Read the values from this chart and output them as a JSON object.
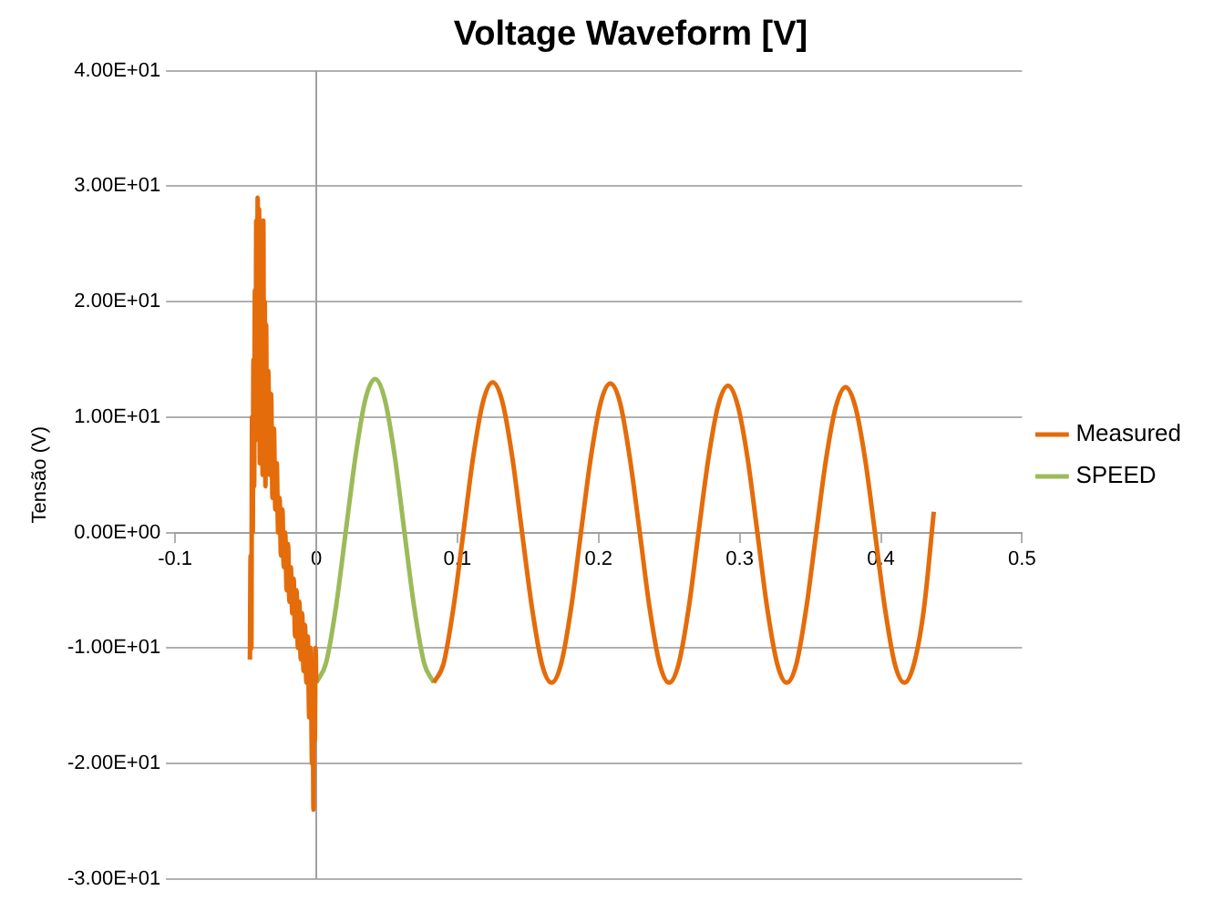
{
  "chart_data": {
    "type": "line",
    "title": "Voltage Waveform [V]",
    "ylabel": "Tensão (V)",
    "legend": "right",
    "grid": "y",
    "marker": "none",
    "line_style": "solid",
    "xlim": [
      -0.1,
      0.5
    ],
    "xticks": [
      -0.1,
      0,
      0.1,
      0.2,
      0.3,
      0.4,
      0.5
    ],
    "ylim": [
      -30,
      40
    ],
    "yticks": [
      {
        "value": -30,
        "label": "-3.00E+01"
      },
      {
        "value": -20,
        "label": "-2.00E+01"
      },
      {
        "value": -10,
        "label": "-1.00E+01"
      },
      {
        "value": 0,
        "label": "0.00E+00"
      },
      {
        "value": 10,
        "label": "1.00E+01"
      },
      {
        "value": 20,
        "label": "2.00E+01"
      },
      {
        "value": 30,
        "label": "3.00E+01"
      },
      {
        "value": 40,
        "label": "4.00E+01"
      }
    ],
    "series": [
      {
        "name": "Measured",
        "color": "#e46c0a",
        "x": [
          -0.047,
          -0.0465,
          -0.046,
          -0.0455,
          -0.045,
          -0.0445,
          -0.044,
          -0.0435,
          -0.043,
          -0.0425,
          -0.042,
          -0.0415,
          -0.041,
          -0.0405,
          -0.04,
          -0.0395,
          -0.039,
          -0.0385,
          -0.038,
          -0.0375,
          -0.037,
          -0.0365,
          -0.036,
          -0.0355,
          -0.035,
          -0.034,
          -0.033,
          -0.032,
          -0.031,
          -0.03,
          -0.029,
          -0.028,
          -0.027,
          -0.026,
          -0.025,
          -0.024,
          -0.023,
          -0.022,
          -0.021,
          -0.02,
          -0.019,
          -0.018,
          -0.017,
          -0.016,
          -0.015,
          -0.014,
          -0.013,
          -0.012,
          -0.011,
          -0.01,
          -0.009,
          -0.008,
          -0.007,
          -0.006,
          -0.005,
          -0.004,
          -0.003,
          -0.0025,
          -0.002,
          -0.0015,
          -0.001,
          -0.0005,
          0,
          0.04,
          0.0833,
          0.0903,
          0.0972,
          0.1042,
          0.1111,
          0.1181,
          0.125,
          0.1319,
          0.1389,
          0.1458,
          0.1528,
          0.1597,
          0.1667,
          0.1736,
          0.1806,
          0.1875,
          0.1944,
          0.2014,
          0.2083,
          0.2153,
          0.2222,
          0.2292,
          0.2361,
          0.2431,
          0.25,
          0.2569,
          0.2639,
          0.2708,
          0.2778,
          0.2847,
          0.2917,
          0.2986,
          0.3056,
          0.3125,
          0.3194,
          0.3264,
          0.3333,
          0.3403,
          0.3472,
          0.3542,
          0.3611,
          0.3681,
          0.375,
          0.3819,
          0.3889,
          0.3958,
          0.4028,
          0.4097,
          0.4167,
          0.4236,
          0.4306,
          0.4375
        ],
        "values": [
          -11,
          -2,
          -10,
          10,
          0,
          15,
          4,
          21,
          8,
          27,
          10,
          29,
          12,
          28,
          6,
          27,
          8,
          24,
          5,
          27,
          6,
          20,
          4,
          18,
          6,
          14,
          5,
          12,
          3,
          9,
          2,
          6,
          0,
          3,
          -2,
          2,
          -3,
          0,
          -5,
          -1,
          -6,
          -3,
          -7,
          -4,
          -9,
          -5,
          -10,
          -6,
          -11,
          -7,
          -12,
          -8,
          -13,
          -9,
          -16,
          -10,
          -20,
          -11,
          -24,
          -12,
          -18,
          -10,
          -13,
          null,
          -13,
          -11.3,
          -6.5,
          0,
          6.5,
          11.3,
          13,
          11.3,
          6.5,
          0,
          -6.5,
          -11.3,
          -13,
          -11.3,
          -6.5,
          0,
          6.4,
          11.2,
          12.9,
          11.2,
          6.4,
          0,
          -6.5,
          -11.3,
          -13,
          -11.3,
          -6.5,
          0,
          6.4,
          11,
          12.7,
          11,
          6.4,
          0,
          -6.5,
          -11.3,
          -13,
          -11.3,
          -6.5,
          0,
          6.3,
          10.9,
          12.6,
          10.9,
          6.3,
          0,
          -6.5,
          -11.3,
          -13,
          -11.3,
          -6.5,
          1.8
        ]
      },
      {
        "name": "SPEED",
        "color": "#9bbb59",
        "x": [
          0,
          0.0069,
          0.0139,
          0.0208,
          0.0278,
          0.0347,
          0.0417,
          0.0486,
          0.0556,
          0.0625,
          0.0694,
          0.0764,
          0.0833
        ],
        "values": [
          -13,
          -11.3,
          -6.5,
          0,
          6.6,
          11.5,
          13.3,
          11.5,
          6.6,
          0,
          -6.5,
          -11.3,
          -13
        ]
      }
    ]
  }
}
